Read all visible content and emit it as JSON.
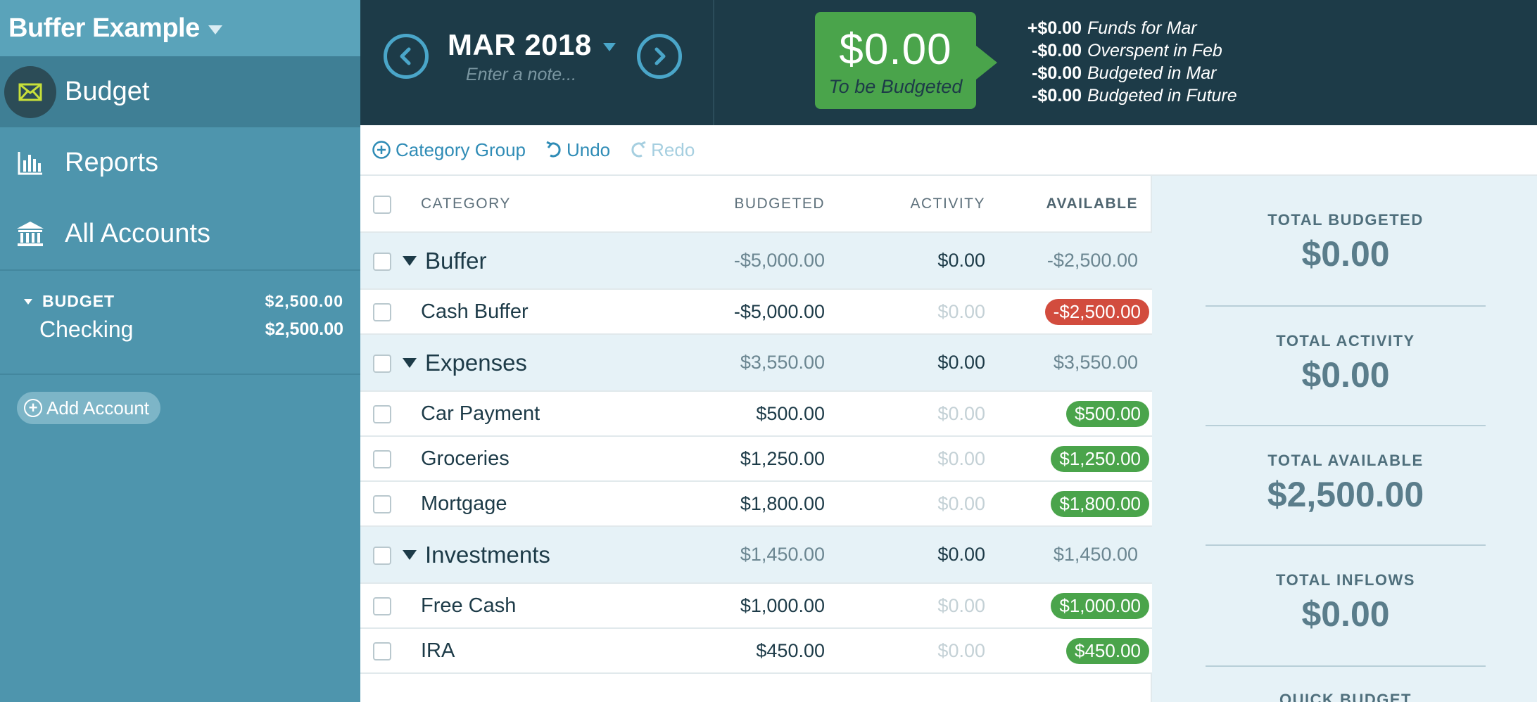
{
  "colors": {
    "sidebar_bg": "#4e95ad",
    "topbar_bg": "#1d3b48",
    "accent_blue": "#2f8cb6",
    "positive_green": "#4aa44b",
    "negative_red": "#d24c3e",
    "inspector_bg": "#e6f2f7"
  },
  "sidebar": {
    "budget_name": "Buffer Example",
    "nav": [
      {
        "label": "Budget",
        "icon": "envelope-icon",
        "active": true
      },
      {
        "label": "Reports",
        "icon": "bar-chart-icon",
        "active": false
      },
      {
        "label": "All Accounts",
        "icon": "bank-icon",
        "active": false
      }
    ],
    "account_group": {
      "label": "BUDGET",
      "balance": "$2,500.00"
    },
    "accounts": [
      {
        "name": "Checking",
        "balance": "$2,500.00"
      }
    ],
    "add_account_label": "Add Account"
  },
  "header": {
    "month": "MAR 2018",
    "note_placeholder": "Enter a note...",
    "to_be_budgeted": {
      "amount": "$0.00",
      "label": "To be Budgeted"
    },
    "summary": [
      {
        "value": "+$0.00",
        "text": "Funds for Mar"
      },
      {
        "value": "-$0.00",
        "text": "Overspent in Feb"
      },
      {
        "value": "-$0.00",
        "text": "Budgeted in Mar"
      },
      {
        "value": "-$0.00",
        "text": "Budgeted in Future"
      }
    ]
  },
  "toolbar": {
    "category_group": "Category Group",
    "undo": "Undo",
    "redo": "Redo"
  },
  "table": {
    "headers": {
      "category": "CATEGORY",
      "budgeted": "BUDGETED",
      "activity": "ACTIVITY",
      "available": "AVAILABLE"
    },
    "rows": [
      {
        "type": "group",
        "name": "Buffer",
        "budgeted": "-$5,000.00",
        "activity": "$0.00",
        "available": "-$2,500.00"
      },
      {
        "type": "cat",
        "name": "Cash Buffer",
        "budgeted": "-$5,000.00",
        "activity": "$0.00",
        "available": "-$2,500.00",
        "status": "neg"
      },
      {
        "type": "group",
        "name": "Expenses",
        "budgeted": "$3,550.00",
        "activity": "$0.00",
        "available": "$3,550.00"
      },
      {
        "type": "cat",
        "name": "Car Payment",
        "budgeted": "$500.00",
        "activity": "$0.00",
        "available": "$500.00",
        "status": "pos"
      },
      {
        "type": "cat",
        "name": "Groceries",
        "budgeted": "$1,250.00",
        "activity": "$0.00",
        "available": "$1,250.00",
        "status": "pos"
      },
      {
        "type": "cat",
        "name": "Mortgage",
        "budgeted": "$1,800.00",
        "activity": "$0.00",
        "available": "$1,800.00",
        "status": "pos"
      },
      {
        "type": "group",
        "name": "Investments",
        "budgeted": "$1,450.00",
        "activity": "$0.00",
        "available": "$1,450.00"
      },
      {
        "type": "cat",
        "name": "Free Cash",
        "budgeted": "$1,000.00",
        "activity": "$0.00",
        "available": "$1,000.00",
        "status": "pos"
      },
      {
        "type": "cat",
        "name": "IRA",
        "budgeted": "$450.00",
        "activity": "$0.00",
        "available": "$450.00",
        "status": "pos"
      }
    ]
  },
  "inspector": {
    "stats": [
      {
        "label": "TOTAL BUDGETED",
        "value": "$0.00"
      },
      {
        "label": "TOTAL ACTIVITY",
        "value": "$0.00"
      },
      {
        "label": "TOTAL AVAILABLE",
        "value": "$2,500.00"
      },
      {
        "label": "TOTAL INFLOWS",
        "value": "$0.00"
      }
    ],
    "quick_budget_label": "QUICK BUDGET"
  }
}
